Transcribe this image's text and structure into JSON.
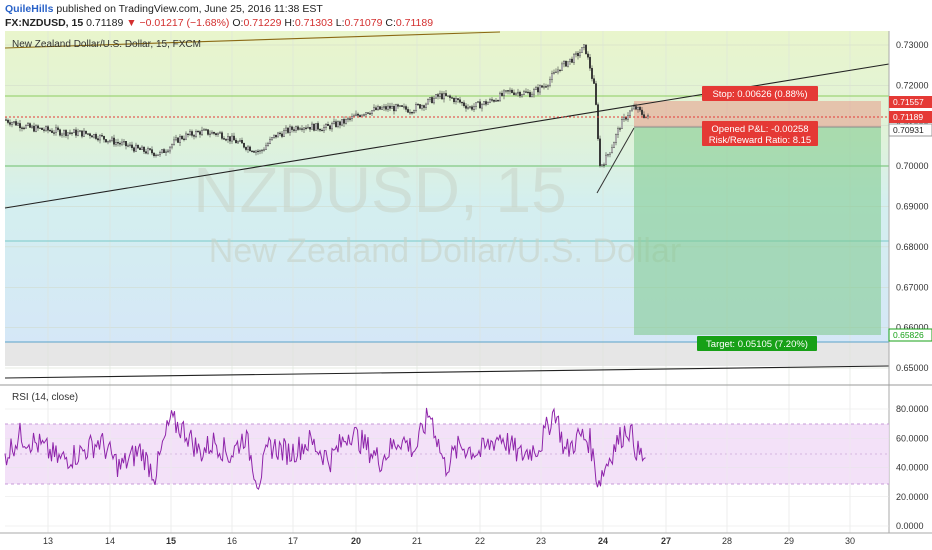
{
  "header": {
    "author": "QuileHills",
    "published_text": "published on TradingView.com, June 25, 2016 11:38 EST",
    "symbol": "FX:NZDUSD, 15",
    "last": "0.71189",
    "change": "▼ −0.01217 (−1.68%)",
    "o_label": "O:",
    "o_value": "0.71229",
    "h_label": "H:",
    "h_value": "0.71303",
    "l_label": "L:",
    "l_value": "0.71079",
    "c_label": "C:",
    "c_value": "0.71189"
  },
  "chart": {
    "legend": "New Zealand Dollar/U.S. Dollar, 15, FXCM",
    "watermark_symbol": "NZDUSD, 15",
    "watermark_name": "New Zealand Dollar/U.S. Dollar",
    "price_ticks": [
      "0.73000",
      "0.72000",
      "0.71000",
      "0.70000",
      "0.69000",
      "0.68000",
      "0.67000",
      "0.66000",
      "0.65000"
    ],
    "price_tick_values": [
      0.73,
      0.72,
      0.71,
      0.7,
      0.69,
      0.68,
      0.67,
      0.66,
      0.65
    ],
    "current_price_label": "0.71189",
    "stop_price_label": "0.71557",
    "entry_price_label": "0.70931",
    "target_price_label": "0.65826",
    "stop_label": "Stop: 0.00626 (0.88%)",
    "pl_label": "Opened P&L: -0.00258",
    "rr_label": "Risk/Reward Ratio: 8.15",
    "target_label": "Target: 0.05105 (7.20%)",
    "colors": {
      "red": "#e53935",
      "green": "#17a017",
      "rsi": "#8e24aa",
      "candle": "#333333"
    }
  },
  "rsi": {
    "legend": "RSI (14, close)",
    "ticks": [
      "80.0000",
      "60.0000",
      "40.0000",
      "20.0000",
      "0.0000"
    ],
    "tick_values": [
      80,
      60,
      40,
      20,
      0
    ]
  },
  "xaxis": {
    "labels": [
      "13",
      "14",
      "15",
      "16",
      "17",
      "20",
      "21",
      "22",
      "23",
      "24",
      "27",
      "28",
      "29",
      "30"
    ],
    "bold": [
      "15",
      "20",
      "24",
      "27"
    ]
  }
}
